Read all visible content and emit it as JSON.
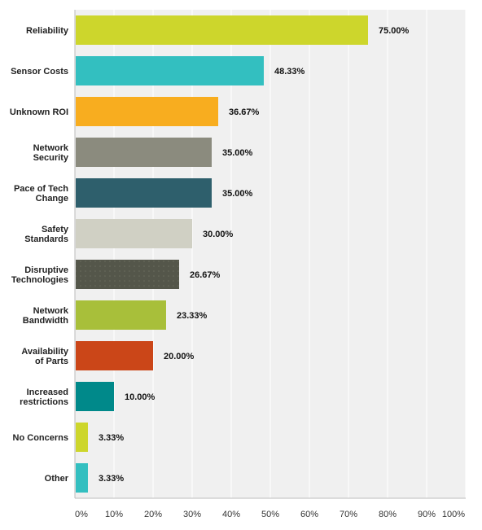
{
  "chart_data": {
    "type": "bar",
    "orientation": "horizontal",
    "categories": [
      [
        "Reliability"
      ],
      [
        "Sensor Costs"
      ],
      [
        "Unknown ROI"
      ],
      [
        "Network",
        "Security"
      ],
      [
        "Pace of Tech",
        "Change"
      ],
      [
        "Safety",
        "Standards"
      ],
      [
        "Disruptive",
        "Technologies"
      ],
      [
        "Network",
        "Bandwidth"
      ],
      [
        "Availability",
        "of Parts"
      ],
      [
        "Increased",
        "restrictions"
      ],
      [
        "No Concerns"
      ],
      [
        "Other"
      ]
    ],
    "values": [
      75.0,
      48.33,
      36.67,
      35.0,
      35.0,
      30.0,
      26.67,
      23.33,
      20.0,
      10.0,
      3.33,
      3.33
    ],
    "value_labels": [
      "75.00%",
      "48.33%",
      "36.67%",
      "35.00%",
      "35.00%",
      "30.00%",
      "26.67%",
      "23.33%",
      "20.00%",
      "10.00%",
      "3.33%",
      "3.33%"
    ],
    "colors": [
      "#cdd62c",
      "#33bfc0",
      "#f8ad1f",
      "#8b8b7e",
      "#2e5f6c",
      "#d0d0c4",
      "#54564a",
      "#a8bf3a",
      "#cb4618",
      "#00898a",
      "#cdd62c",
      "#33bfc0"
    ],
    "xlim": [
      0,
      100
    ],
    "xticks": [
      "0%",
      "10%",
      "20%",
      "30%",
      "40%",
      "50%",
      "60%",
      "70%",
      "80%",
      "90%",
      "100%"
    ],
    "grid": true,
    "title": "",
    "xlabel": "",
    "ylabel": ""
  }
}
